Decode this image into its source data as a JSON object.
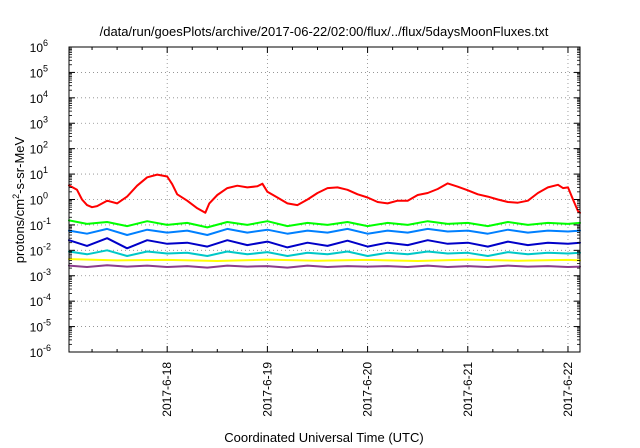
{
  "chart_data": {
    "type": "line",
    "title": "/data/run/goesPlots/archive/2017-06-22/02:00/flux/../flux/5daysMoonFluxes.txt",
    "xlabel": "Coordinated Universal Time (UTC)",
    "ylabel": {
      "prefix": "protons/cm",
      "sup": "2",
      "suffix": "-s-sr-MeV"
    },
    "y_scale": "log",
    "ylim_exp": [
      -6,
      6
    ],
    "y_ticks": [
      {
        "base": "10",
        "exp": "6"
      },
      {
        "base": "10",
        "exp": "5"
      },
      {
        "base": "10",
        "exp": "4"
      },
      {
        "base": "10",
        "exp": "3"
      },
      {
        "base": "10",
        "exp": "2"
      },
      {
        "base": "10",
        "exp": "1"
      },
      {
        "base": "10",
        "exp": "0"
      },
      {
        "base": "10",
        "exp": "-1"
      },
      {
        "base": "10",
        "exp": "-2"
      },
      {
        "base": "10",
        "exp": "-3"
      },
      {
        "base": "10",
        "exp": "-4"
      },
      {
        "base": "10",
        "exp": "-5"
      },
      {
        "base": "10",
        "exp": "-6"
      }
    ],
    "xlim_days": [
      -0.98,
      4.12
    ],
    "x_ticks": [
      {
        "label": "2017-6-18",
        "day": 0
      },
      {
        "label": "2017-6-19",
        "day": 1
      },
      {
        "label": "2017-6-20",
        "day": 2
      },
      {
        "label": "2017-6-21",
        "day": 3
      },
      {
        "label": "2017-6-22",
        "day": 4
      }
    ],
    "grid": true,
    "legend": "none",
    "series": [
      {
        "color": "#ff0000",
        "values": [
          [
            -0.98,
            3.6
          ],
          [
            -0.9,
            2.4
          ],
          [
            -0.85,
            1.0
          ],
          [
            -0.8,
            0.6
          ],
          [
            -0.75,
            0.5
          ],
          [
            -0.7,
            0.55
          ],
          [
            -0.6,
            0.9
          ],
          [
            -0.5,
            0.7
          ],
          [
            -0.4,
            1.3
          ],
          [
            -0.3,
            3.5
          ],
          [
            -0.2,
            7.5
          ],
          [
            -0.1,
            9.5
          ],
          [
            0.0,
            8.0
          ],
          [
            0.05,
            4.0
          ],
          [
            0.1,
            1.6
          ],
          [
            0.2,
            0.9
          ],
          [
            0.3,
            0.45
          ],
          [
            0.38,
            0.3
          ],
          [
            0.42,
            0.7
          ],
          [
            0.5,
            1.5
          ],
          [
            0.6,
            2.8
          ],
          [
            0.7,
            3.5
          ],
          [
            0.8,
            3.0
          ],
          [
            0.9,
            3.3
          ],
          [
            0.95,
            4.2
          ],
          [
            1.0,
            2.0
          ],
          [
            1.1,
            1.2
          ],
          [
            1.2,
            0.7
          ],
          [
            1.3,
            0.6
          ],
          [
            1.4,
            1.0
          ],
          [
            1.5,
            1.8
          ],
          [
            1.6,
            2.8
          ],
          [
            1.7,
            3.0
          ],
          [
            1.8,
            2.4
          ],
          [
            1.9,
            1.6
          ],
          [
            2.0,
            1.2
          ],
          [
            2.1,
            0.8
          ],
          [
            2.2,
            0.7
          ],
          [
            2.3,
            0.9
          ],
          [
            2.4,
            0.9
          ],
          [
            2.5,
            1.5
          ],
          [
            2.6,
            1.8
          ],
          [
            2.7,
            2.6
          ],
          [
            2.8,
            4.3
          ],
          [
            2.9,
            3.2
          ],
          [
            3.0,
            2.3
          ],
          [
            3.1,
            1.6
          ],
          [
            3.2,
            1.3
          ],
          [
            3.3,
            1.0
          ],
          [
            3.4,
            0.8
          ],
          [
            3.5,
            0.75
          ],
          [
            3.6,
            0.9
          ],
          [
            3.7,
            1.8
          ],
          [
            3.8,
            3.0
          ],
          [
            3.9,
            3.8
          ],
          [
            3.95,
            2.8
          ],
          [
            4.0,
            3.0
          ],
          [
            4.05,
            1.0
          ],
          [
            4.1,
            0.35
          ],
          [
            4.12,
            0.3
          ]
        ]
      },
      {
        "color": "#00ff00",
        "values": [
          [
            -0.98,
            0.15
          ],
          [
            -0.8,
            0.11
          ],
          [
            -0.6,
            0.13
          ],
          [
            -0.4,
            0.09
          ],
          [
            -0.2,
            0.14
          ],
          [
            0.0,
            0.1
          ],
          [
            0.2,
            0.12
          ],
          [
            0.4,
            0.08
          ],
          [
            0.6,
            0.13
          ],
          [
            0.8,
            0.1
          ],
          [
            1.0,
            0.14
          ],
          [
            1.2,
            0.09
          ],
          [
            1.4,
            0.12
          ],
          [
            1.6,
            0.1
          ],
          [
            1.8,
            0.13
          ],
          [
            2.0,
            0.09
          ],
          [
            2.2,
            0.12
          ],
          [
            2.4,
            0.1
          ],
          [
            2.6,
            0.14
          ],
          [
            2.8,
            0.11
          ],
          [
            3.0,
            0.12
          ],
          [
            3.2,
            0.09
          ],
          [
            3.4,
            0.13
          ],
          [
            3.6,
            0.1
          ],
          [
            3.8,
            0.12
          ],
          [
            4.0,
            0.11
          ],
          [
            4.12,
            0.12
          ]
        ]
      },
      {
        "color": "#0080ff",
        "values": [
          [
            -0.98,
            0.06
          ],
          [
            -0.8,
            0.045
          ],
          [
            -0.6,
            0.07
          ],
          [
            -0.4,
            0.04
          ],
          [
            -0.2,
            0.065
          ],
          [
            0.0,
            0.05
          ],
          [
            0.2,
            0.06
          ],
          [
            0.4,
            0.04
          ],
          [
            0.6,
            0.07
          ],
          [
            0.8,
            0.05
          ],
          [
            1.0,
            0.065
          ],
          [
            1.2,
            0.045
          ],
          [
            1.4,
            0.06
          ],
          [
            1.6,
            0.05
          ],
          [
            1.8,
            0.07
          ],
          [
            2.0,
            0.045
          ],
          [
            2.2,
            0.06
          ],
          [
            2.4,
            0.05
          ],
          [
            2.6,
            0.07
          ],
          [
            2.8,
            0.055
          ],
          [
            3.0,
            0.06
          ],
          [
            3.2,
            0.045
          ],
          [
            3.4,
            0.065
          ],
          [
            3.6,
            0.05
          ],
          [
            3.8,
            0.06
          ],
          [
            4.0,
            0.055
          ],
          [
            4.12,
            0.06
          ]
        ]
      },
      {
        "color": "#0000c8",
        "values": [
          [
            -0.98,
            0.025
          ],
          [
            -0.8,
            0.015
          ],
          [
            -0.6,
            0.03
          ],
          [
            -0.4,
            0.012
          ],
          [
            -0.2,
            0.025
          ],
          [
            0.0,
            0.018
          ],
          [
            0.2,
            0.02
          ],
          [
            0.4,
            0.014
          ],
          [
            0.6,
            0.025
          ],
          [
            0.8,
            0.016
          ],
          [
            1.0,
            0.022
          ],
          [
            1.2,
            0.013
          ],
          [
            1.4,
            0.02
          ],
          [
            1.6,
            0.015
          ],
          [
            1.8,
            0.024
          ],
          [
            2.0,
            0.014
          ],
          [
            2.2,
            0.02
          ],
          [
            2.4,
            0.016
          ],
          [
            2.6,
            0.025
          ],
          [
            2.8,
            0.018
          ],
          [
            3.0,
            0.02
          ],
          [
            3.2,
            0.014
          ],
          [
            3.4,
            0.022
          ],
          [
            3.6,
            0.016
          ],
          [
            3.8,
            0.02
          ],
          [
            4.0,
            0.018
          ],
          [
            4.12,
            0.02
          ]
        ]
      },
      {
        "color": "#00c8c8",
        "values": [
          [
            -0.98,
            0.009
          ],
          [
            -0.8,
            0.007
          ],
          [
            -0.6,
            0.01
          ],
          [
            -0.4,
            0.006
          ],
          [
            -0.2,
            0.009
          ],
          [
            0.0,
            0.0075
          ],
          [
            0.2,
            0.008
          ],
          [
            0.4,
            0.006
          ],
          [
            0.6,
            0.009
          ],
          [
            0.8,
            0.007
          ],
          [
            1.0,
            0.0085
          ],
          [
            1.2,
            0.006
          ],
          [
            1.4,
            0.008
          ],
          [
            1.6,
            0.007
          ],
          [
            1.8,
            0.009
          ],
          [
            2.0,
            0.006
          ],
          [
            2.2,
            0.008
          ],
          [
            2.4,
            0.007
          ],
          [
            2.6,
            0.009
          ],
          [
            2.8,
            0.0075
          ],
          [
            3.0,
            0.008
          ],
          [
            3.2,
            0.006
          ],
          [
            3.4,
            0.0085
          ],
          [
            3.6,
            0.007
          ],
          [
            3.8,
            0.008
          ],
          [
            4.0,
            0.0075
          ],
          [
            4.12,
            0.008
          ]
        ]
      },
      {
        "color": "#ffff00",
        "values": [
          [
            -0.98,
            0.0045
          ],
          [
            -0.5,
            0.004
          ],
          [
            0.0,
            0.0042
          ],
          [
            0.5,
            0.0038
          ],
          [
            1.0,
            0.0043
          ],
          [
            1.5,
            0.0039
          ],
          [
            2.0,
            0.0042
          ],
          [
            2.5,
            0.0038
          ],
          [
            3.0,
            0.0043
          ],
          [
            3.5,
            0.0039
          ],
          [
            4.0,
            0.0042
          ],
          [
            4.12,
            0.004
          ]
        ]
      },
      {
        "color": "#8c3c8c",
        "values": [
          [
            -0.98,
            0.0025
          ],
          [
            -0.8,
            0.0022
          ],
          [
            -0.6,
            0.0026
          ],
          [
            -0.4,
            0.0023
          ],
          [
            -0.2,
            0.0025
          ],
          [
            0.0,
            0.0022
          ],
          [
            0.2,
            0.0024
          ],
          [
            0.4,
            0.0021
          ],
          [
            0.6,
            0.0025
          ],
          [
            0.8,
            0.0023
          ],
          [
            1.0,
            0.0024
          ],
          [
            1.2,
            0.0021
          ],
          [
            1.4,
            0.0025
          ],
          [
            1.6,
            0.0022
          ],
          [
            1.8,
            0.0024
          ],
          [
            2.0,
            0.0023
          ],
          [
            2.2,
            0.0024
          ],
          [
            2.4,
            0.0022
          ],
          [
            2.6,
            0.0025
          ],
          [
            2.8,
            0.0022
          ],
          [
            3.0,
            0.0024
          ],
          [
            3.2,
            0.0022
          ],
          [
            3.4,
            0.0025
          ],
          [
            3.6,
            0.0023
          ],
          [
            3.8,
            0.0024
          ],
          [
            4.0,
            0.0022
          ],
          [
            4.12,
            0.0023
          ]
        ]
      }
    ]
  }
}
